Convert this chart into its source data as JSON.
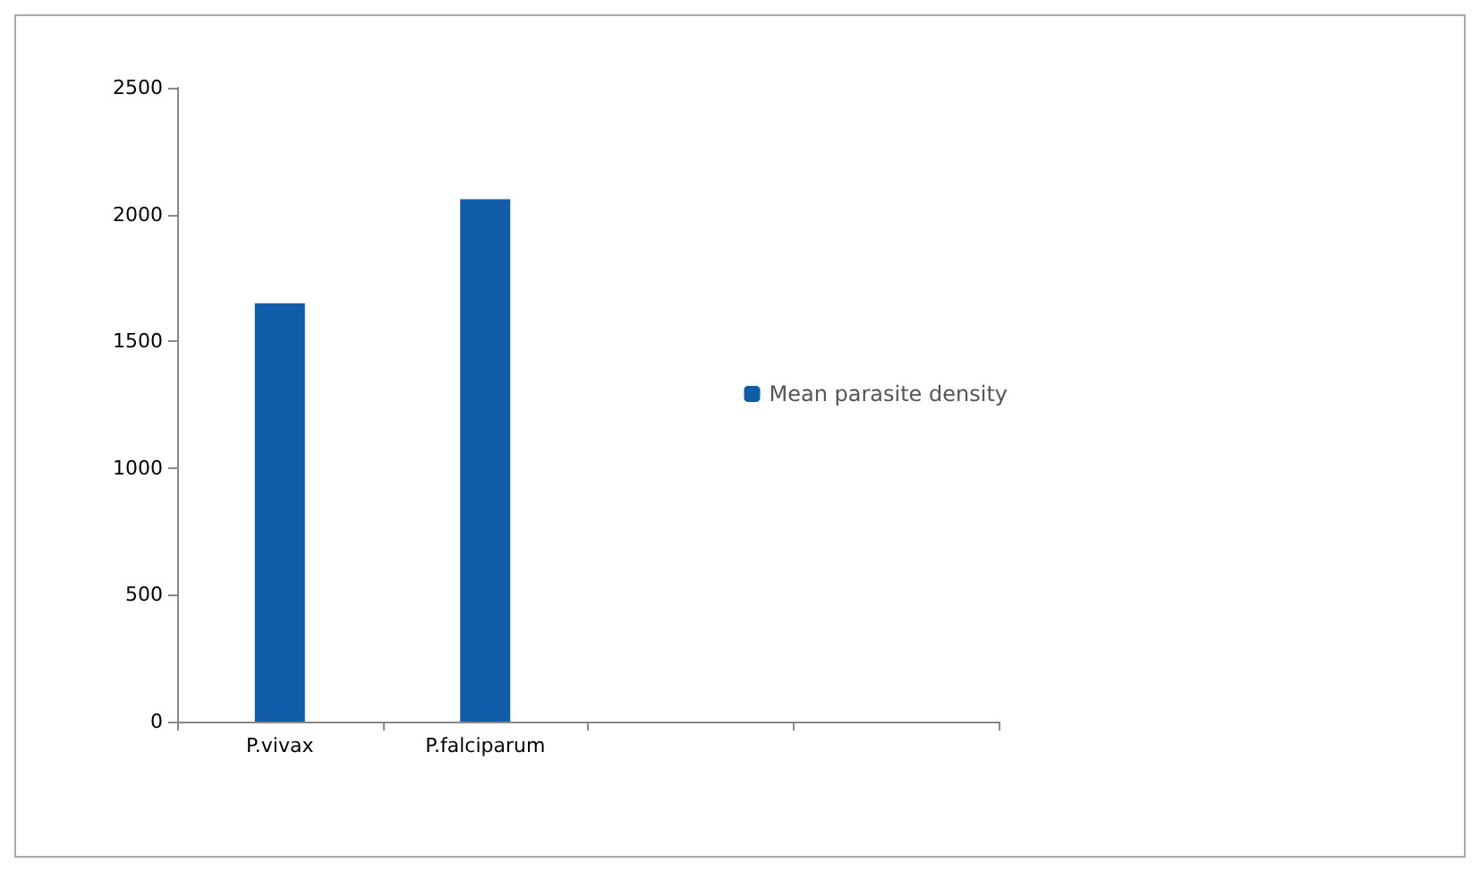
{
  "chart_data": {
    "type": "bar",
    "categories": [
      "P.vivax",
      "P.falciparum",
      null,
      null
    ],
    "series": [
      {
        "name": "Mean parasite density",
        "color": "#0f5ca8",
        "values": [
          1650,
          2060,
          null,
          null
        ]
      }
    ],
    "ylim": [
      0,
      2500
    ],
    "yticks": [
      0,
      500,
      1000,
      1500,
      2000,
      2500
    ],
    "grid": false,
    "legend": "right"
  }
}
